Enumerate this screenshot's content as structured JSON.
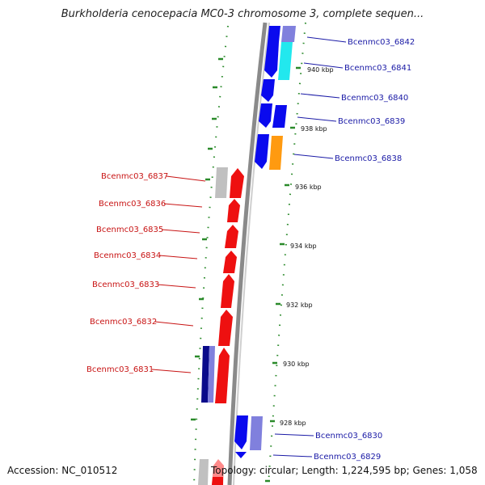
{
  "title": "Burkholderia cenocepacia MC0-3 chromosome 3, complete sequen...",
  "footer": {
    "accession": "Accession: NC_010512",
    "summary": "Topology: circular; Length: 1,224,595 bp; Genes: 1,058"
  },
  "scale_labels": [
    "940 kbp",
    "938 kbp",
    "936 kbp",
    "934 kbp",
    "932 kbp",
    "930 kbp",
    "928 kbp"
  ],
  "genes_forward": [
    "Bcenmc03_6842",
    "Bcenmc03_6841",
    "Bcenmc03_6840",
    "Bcenmc03_6839",
    "Bcenmc03_6838",
    "Bcenmc03_6830",
    "Bcenmc03_6829"
  ],
  "genes_reverse": [
    "Bcenmc03_6837",
    "Bcenmc03_6836",
    "Bcenmc03_6835",
    "Bcenmc03_6834",
    "Bcenmc03_6833",
    "Bcenmc03_6832",
    "Bcenmc03_6831"
  ],
  "colors": {
    "forward_gene": "#0a0aee",
    "reverse_gene": "#ee1010",
    "backbone": "#8a8a8a",
    "ticks": "#2a8a2a",
    "cyan_feature": "#22e8ee",
    "orange_feature": "#ff9a10",
    "lavender_feature": "#8080dd",
    "navy_feature": "#0a0a8a",
    "gray_feature": "#c0c0c0"
  }
}
